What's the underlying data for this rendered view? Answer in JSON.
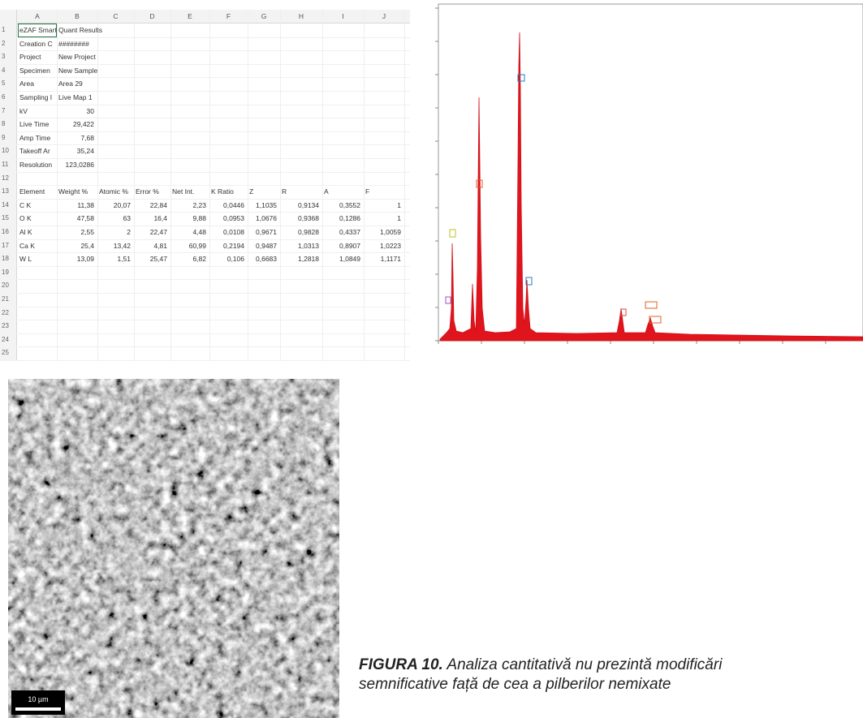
{
  "spreadsheet": {
    "columns": [
      "A",
      "B",
      "C",
      "D",
      "E",
      "F",
      "G",
      "H",
      "I",
      "J"
    ],
    "row_numbers": [
      1,
      2,
      3,
      4,
      5,
      6,
      7,
      8,
      9,
      10,
      11,
      12,
      13,
      14,
      15,
      16,
      17,
      18,
      19,
      20,
      21,
      22,
      23,
      24,
      25
    ],
    "rows": [
      [
        "eZAF Smart Quant Results"
      ],
      [
        "Creation C",
        "########"
      ],
      [
        "Project",
        "New Project"
      ],
      [
        "Specimen",
        "New Sample"
      ],
      [
        "Area",
        "Area 29"
      ],
      [
        "Sampling I",
        "Live Map 1"
      ],
      [
        "kV",
        "30"
      ],
      [
        "Live Time",
        "29,422"
      ],
      [
        "Amp Time",
        "7,68"
      ],
      [
        "Takeoff Ar",
        "35,24"
      ],
      [
        "Resolution",
        "123,0286"
      ],
      [],
      [
        "Element",
        "Weight %",
        "Atomic %",
        "Error %",
        "Net Int.",
        "K Ratio",
        "Z",
        "R",
        "A",
        "F"
      ],
      [
        "C K",
        "11,38",
        "20,07",
        "22,84",
        "2,23",
        "0,0446",
        "1,1035",
        "0,9134",
        "0,3552",
        "1"
      ],
      [
        "O K",
        "47,58",
        "63",
        "16,4",
        "9,88",
        "0,0953",
        "1,0676",
        "0,9368",
        "0,1286",
        "1"
      ],
      [
        "Al K",
        "2,55",
        "2",
        "22,47",
        "4,48",
        "0,0108",
        "0,9671",
        "0,9828",
        "0,4337",
        "1,0059"
      ],
      [
        "Ca K",
        "25,4",
        "13,42",
        "4,81",
        "60,99",
        "0,2194",
        "0,9487",
        "1,0313",
        "0,8907",
        "1,0223"
      ],
      [
        "W L",
        "13,09",
        "1,51",
        "25,47",
        "6,82",
        "0,106",
        "0,6683",
        "1,2818",
        "1,0849",
        "1,1171"
      ],
      [],
      [],
      [],
      [],
      [],
      [],
      []
    ]
  },
  "sem_image": {
    "scale_bar": "10 µm"
  },
  "caption": {
    "label": "FIGURA 10.",
    "lines": [
      "Analiza cantitativă nu prezintă modificări",
      "semnificative față de cea a pilberilor nemixate"
    ]
  }
}
